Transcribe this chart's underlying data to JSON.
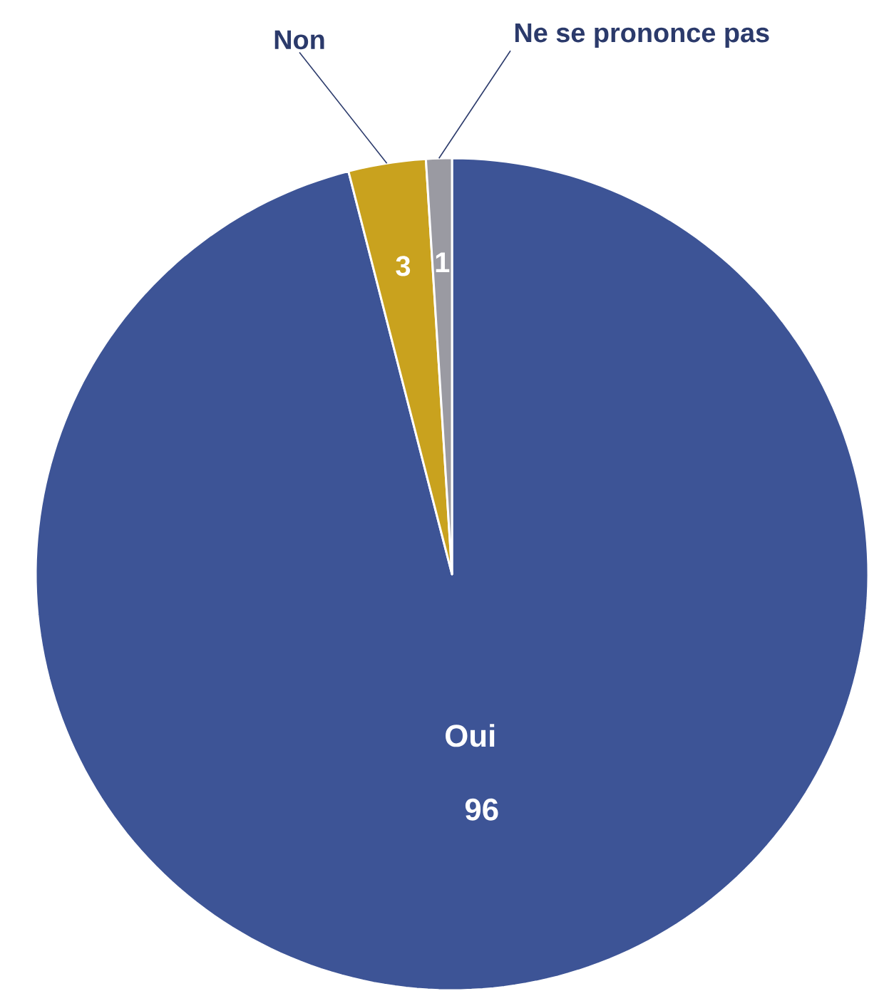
{
  "chart_data": {
    "type": "pie",
    "categories": [
      "Oui",
      "Non",
      "Ne se prononce pas"
    ],
    "values": [
      96,
      3,
      1
    ],
    "colors": [
      "#3d5496",
      "#c9a21e",
      "#9a9aa2"
    ],
    "data_labels": true
  }
}
